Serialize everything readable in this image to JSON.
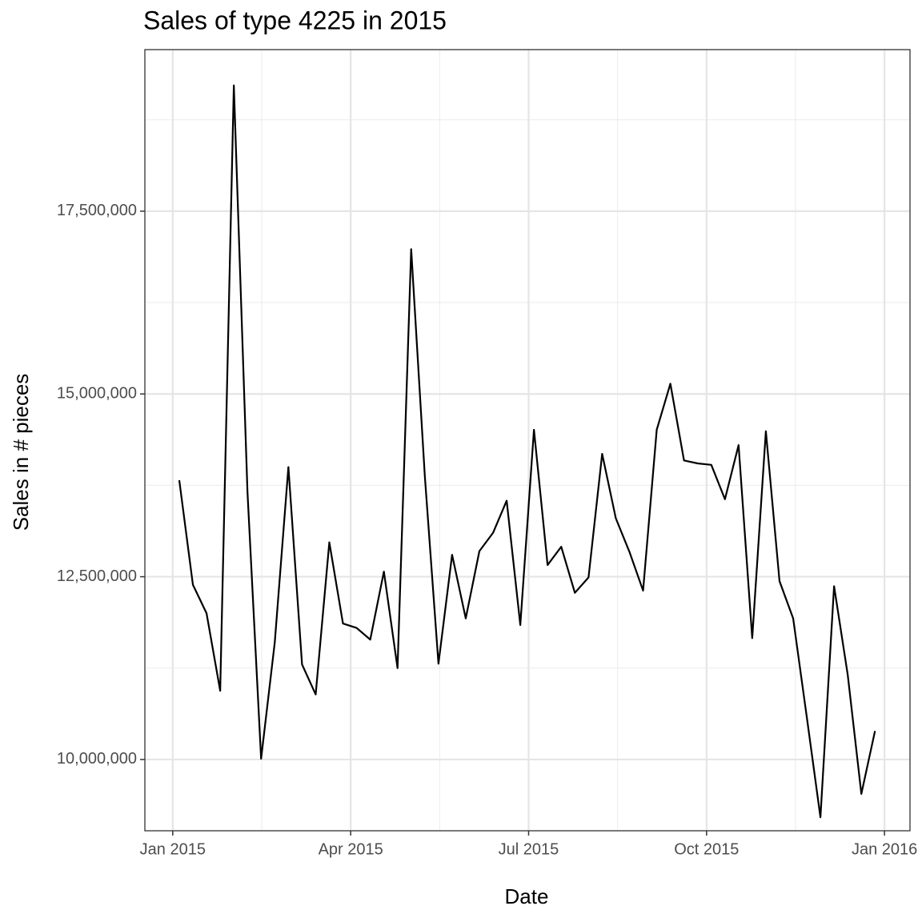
{
  "chart_data": {
    "type": "line",
    "title": "Sales of type 4225 in 2015",
    "x_label": "Date",
    "y_label": "Sales in # pieces",
    "x": [
      0.11,
      0.34,
      0.57,
      0.8,
      1.03,
      1.26,
      1.49,
      1.72,
      1.95,
      2.18,
      2.41,
      2.64,
      2.87,
      3.1,
      3.33,
      3.56,
      3.79,
      4.02,
      4.25,
      4.48,
      4.71,
      4.94,
      5.17,
      5.4,
      5.63,
      5.86,
      6.09,
      6.32,
      6.55,
      6.78,
      7.01,
      7.24,
      7.47,
      7.7,
      7.93,
      8.16,
      8.39,
      8.62,
      8.85,
      9.08,
      9.31,
      9.54,
      9.77,
      10.0,
      10.23,
      10.46,
      10.69,
      10.92,
      11.15,
      11.38,
      11.61,
      11.84
    ],
    "series": [
      {
        "name": "Sales",
        "color": "#000000",
        "values": [
          13820000,
          12390000,
          12000000,
          10940000,
          19220000,
          13660000,
          10010000,
          11600000,
          14000000,
          11300000,
          10890000,
          12970000,
          11860000,
          11800000,
          11640000,
          12570000,
          11250000,
          16980000,
          13880000,
          11310000,
          12800000,
          11930000,
          12850000,
          13100000,
          13540000,
          11840000,
          14510000,
          12660000,
          12910000,
          12280000,
          12490000,
          14180000,
          13300000,
          12840000,
          12310000,
          14510000,
          15140000,
          14090000,
          14050000,
          14030000,
          13560000,
          14300000,
          11660000,
          14490000,
          12440000,
          11930000,
          10580000,
          9210000,
          12370000,
          11160000,
          9530000,
          10390000
        ]
      }
    ],
    "xlim": [
      -0.47,
      12.43
    ],
    "xticks": [
      {
        "value": 0,
        "label": "Jan 2015"
      },
      {
        "value": 3,
        "label": "Apr 2015"
      },
      {
        "value": 6,
        "label": "Jul 2015"
      },
      {
        "value": 9,
        "label": "Oct 2015"
      },
      {
        "value": 12,
        "label": "Jan 2016"
      }
    ],
    "ylim": [
      9025000,
      19710000
    ],
    "yticks": [
      {
        "value": 10000000,
        "label": "10,000,000"
      },
      {
        "value": 12500000,
        "label": "12,500,000"
      },
      {
        "value": 15000000,
        "label": "15,000,000"
      },
      {
        "value": 17500000,
        "label": "17,500,000"
      }
    ],
    "grid": true
  }
}
